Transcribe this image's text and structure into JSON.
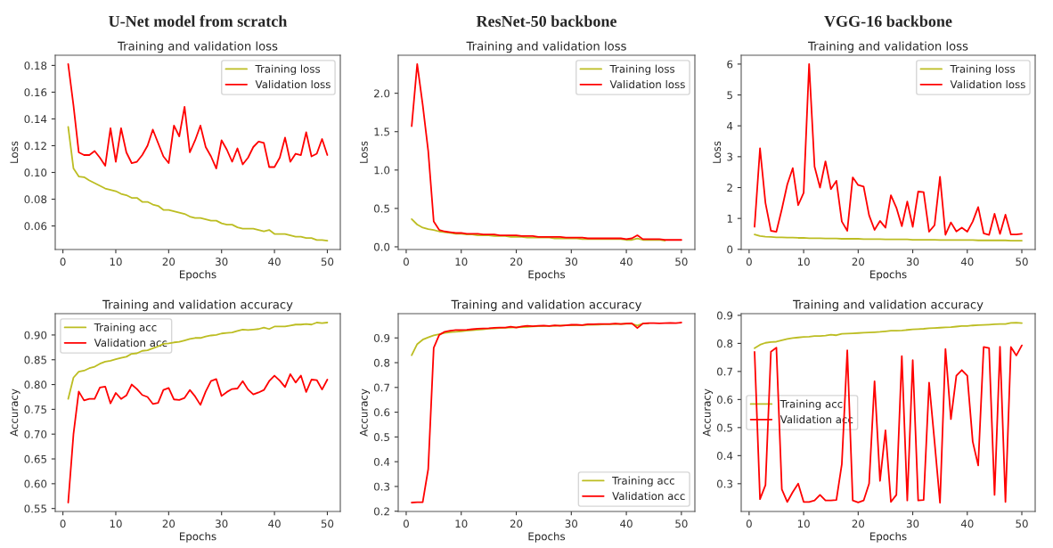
{
  "chart_data": [
    {
      "type": "line",
      "title": "U-Net model from scratch",
      "subtitle": "Training and validation loss",
      "xlabel": "Epochs",
      "ylabel": "Loss",
      "legend": "top right",
      "x": [
        1,
        2,
        3,
        4,
        5,
        6,
        7,
        8,
        9,
        10,
        11,
        12,
        13,
        14,
        15,
        16,
        17,
        18,
        19,
        20,
        21,
        22,
        23,
        24,
        25,
        26,
        27,
        28,
        29,
        30,
        31,
        32,
        33,
        34,
        35,
        36,
        37,
        38,
        39,
        40,
        41,
        42,
        43,
        44,
        45,
        46,
        47,
        48,
        49,
        50
      ],
      "xlim": [
        -1.45,
        52.45
      ],
      "xticks": [
        0,
        10,
        20,
        30,
        40,
        50
      ],
      "ylim": [
        0.0424,
        0.1876
      ],
      "yticks": [
        0.06,
        0.08,
        {
          "value": 0.1,
          "label": "0.10"
        },
        0.12,
        0.14,
        0.16,
        0.18
      ],
      "series": [
        {
          "name": "Training loss",
          "color": "#bcbd22",
          "values": [
            0.134,
            0.103,
            0.097,
            0.0965,
            0.094,
            0.092,
            0.09,
            0.088,
            0.087,
            0.086,
            0.084,
            0.083,
            0.081,
            0.081,
            0.078,
            0.078,
            0.076,
            0.075,
            0.072,
            0.072,
            0.071,
            0.07,
            0.069,
            0.067,
            0.066,
            0.066,
            0.065,
            0.064,
            0.064,
            0.062,
            0.061,
            0.061,
            0.059,
            0.058,
            0.058,
            0.058,
            0.057,
            0.056,
            0.057,
            0.054,
            0.054,
            0.054,
            0.053,
            0.052,
            0.052,
            0.051,
            0.051,
            0.0495,
            0.0495,
            0.049
          ]
        },
        {
          "name": "Validation loss",
          "color": "#ff0000",
          "values": [
            0.181,
            0.15,
            0.115,
            0.113,
            0.113,
            0.116,
            0.111,
            0.105,
            0.133,
            0.108,
            0.133,
            0.115,
            0.107,
            0.108,
            0.113,
            0.12,
            0.132,
            0.122,
            0.112,
            0.107,
            0.135,
            0.127,
            0.149,
            0.115,
            0.124,
            0.135,
            0.119,
            0.112,
            0.103,
            0.124,
            0.117,
            0.108,
            0.118,
            0.106,
            0.111,
            0.119,
            0.123,
            0.122,
            0.104,
            0.104,
            0.111,
            0.126,
            0.108,
            0.114,
            0.113,
            0.13,
            0.112,
            0.114,
            0.125,
            0.113
          ]
        }
      ]
    },
    {
      "type": "line",
      "title": "ResNet-50 backbone",
      "subtitle": "Training and validation loss",
      "xlabel": "Epochs",
      "ylabel": "Loss",
      "legend": "top right",
      "x": [
        1,
        2,
        3,
        4,
        5,
        6,
        7,
        8,
        9,
        10,
        11,
        12,
        13,
        14,
        15,
        16,
        17,
        18,
        19,
        20,
        21,
        22,
        23,
        24,
        25,
        26,
        27,
        28,
        29,
        30,
        31,
        32,
        33,
        34,
        35,
        36,
        37,
        38,
        39,
        40,
        41,
        42,
        43,
        44,
        45,
        46,
        47,
        48,
        49,
        50
      ],
      "xlim": [
        -1.45,
        52.45
      ],
      "xticks": [
        0,
        10,
        20,
        30,
        40,
        50
      ],
      "ylim": [
        -0.035,
        2.495
      ],
      "yticks": [
        {
          "value": 0,
          "label": "0.0"
        },
        0.5,
        {
          "value": 1,
          "label": "1.0"
        },
        1.5,
        {
          "value": 2,
          "label": "2.0"
        }
      ],
      "series": [
        {
          "name": "Training loss",
          "color": "#bcbd22",
          "values": [
            0.36,
            0.29,
            0.25,
            0.23,
            0.22,
            0.2,
            0.19,
            0.18,
            0.17,
            0.17,
            0.16,
            0.16,
            0.15,
            0.15,
            0.15,
            0.14,
            0.14,
            0.14,
            0.13,
            0.13,
            0.13,
            0.12,
            0.12,
            0.12,
            0.12,
            0.12,
            0.11,
            0.11,
            0.11,
            0.11,
            0.11,
            0.1,
            0.1,
            0.1,
            0.1,
            0.1,
            0.1,
            0.1,
            0.1,
            0.09,
            0.09,
            0.11,
            0.09,
            0.09,
            0.09,
            0.09,
            0.08,
            null,
            null,
            null
          ]
        },
        {
          "name": "Validation loss",
          "color": "#ff0000",
          "values": [
            1.57,
            2.38,
            1.85,
            1.25,
            0.33,
            0.22,
            0.2,
            0.19,
            0.18,
            0.18,
            0.17,
            0.17,
            0.17,
            0.16,
            0.16,
            0.16,
            0.15,
            0.15,
            0.15,
            0.15,
            0.14,
            0.14,
            0.14,
            0.13,
            0.13,
            0.13,
            0.13,
            0.13,
            0.12,
            0.12,
            0.12,
            0.12,
            0.11,
            0.11,
            0.11,
            0.11,
            0.11,
            0.11,
            0.11,
            0.1,
            0.11,
            0.15,
            0.1,
            0.1,
            0.1,
            0.1,
            0.09,
            0.09,
            0.09,
            0.09
          ]
        }
      ]
    },
    {
      "type": "line",
      "title": "VGG-16 backbone",
      "subtitle": "Training and validation loss",
      "xlabel": "Epochs",
      "ylabel": "Loss",
      "legend": "top right",
      "x": [
        1,
        2,
        3,
        4,
        5,
        6,
        7,
        8,
        9,
        10,
        11,
        12,
        13,
        14,
        15,
        16,
        17,
        18,
        19,
        20,
        21,
        22,
        23,
        24,
        25,
        26,
        27,
        28,
        29,
        30,
        31,
        32,
        33,
        34,
        35,
        36,
        37,
        38,
        39,
        40,
        41,
        42,
        43,
        44,
        45,
        46,
        47,
        48,
        49,
        50
      ],
      "xlim": [
        -1.45,
        52.45
      ],
      "xticks": [
        0,
        10,
        20,
        30,
        40,
        50
      ],
      "ylim": [
        -0.006,
        6.286
      ],
      "yticks": [
        0,
        1,
        2,
        3,
        4,
        5,
        6
      ],
      "series": [
        {
          "name": "Training loss",
          "color": "#bcbd22",
          "values": [
            0.48,
            0.43,
            0.41,
            0.4,
            0.39,
            0.39,
            0.38,
            0.38,
            0.37,
            0.37,
            0.36,
            0.36,
            0.36,
            0.35,
            0.35,
            0.35,
            0.34,
            0.34,
            0.34,
            0.34,
            0.33,
            0.33,
            0.33,
            0.33,
            0.32,
            0.32,
            0.32,
            0.32,
            0.32,
            0.31,
            0.31,
            0.31,
            0.31,
            0.31,
            0.3,
            0.3,
            0.3,
            0.3,
            0.3,
            0.3,
            0.3,
            0.29,
            0.29,
            0.29,
            0.29,
            0.29,
            0.29,
            0.28,
            0.28,
            0.28
          ]
        },
        {
          "name": "Validation loss",
          "color": "#ff0000",
          "values": [
            0.73,
            3.27,
            1.5,
            0.6,
            0.57,
            1.3,
            2.1,
            2.63,
            1.43,
            1.83,
            6.0,
            2.68,
            2.0,
            2.85,
            1.95,
            2.22,
            0.9,
            0.6,
            2.33,
            2.08,
            2.03,
            1.1,
            0.63,
            0.92,
            0.7,
            1.75,
            1.35,
            0.75,
            1.55,
            0.73,
            1.87,
            1.85,
            0.57,
            0.78,
            2.35,
            0.47,
            0.87,
            0.58,
            0.7,
            0.57,
            0.9,
            1.37,
            0.52,
            0.47,
            1.15,
            0.5,
            1.12,
            0.48,
            0.48,
            0.5
          ]
        }
      ]
    },
    {
      "type": "line",
      "title": "Training and validation accuracy",
      "xlabel": "Epochs",
      "ylabel": "Accuracy",
      "legend": "top left",
      "x": [
        1,
        2,
        3,
        4,
        5,
        6,
        7,
        8,
        9,
        10,
        11,
        12,
        13,
        14,
        15,
        16,
        17,
        18,
        19,
        20,
        21,
        22,
        23,
        24,
        25,
        26,
        27,
        28,
        29,
        30,
        31,
        32,
        33,
        34,
        35,
        36,
        37,
        38,
        39,
        40,
        41,
        42,
        43,
        44,
        45,
        46,
        47,
        48,
        49,
        50
      ],
      "xlim": [
        -1.45,
        52.45
      ],
      "xticks": [
        0,
        10,
        20,
        30,
        40,
        50
      ],
      "ylim": [
        0.544,
        0.943
      ],
      "yticks": [
        0.55,
        {
          "value": 0.6,
          "label": "0.60"
        },
        0.65,
        {
          "value": 0.7,
          "label": "0.70"
        },
        0.75,
        {
          "value": 0.8,
          "label": "0.80"
        },
        0.85,
        {
          "value": 0.9,
          "label": "0.90"
        }
      ],
      "series": [
        {
          "name": "Training acc",
          "color": "#bcbd22",
          "values": [
            0.771,
            0.814,
            0.826,
            0.828,
            0.833,
            0.836,
            0.842,
            0.846,
            0.848,
            0.851,
            0.854,
            0.856,
            0.862,
            0.863,
            0.868,
            0.869,
            0.873,
            0.877,
            0.882,
            0.883,
            0.885,
            0.886,
            0.889,
            0.892,
            0.894,
            0.894,
            0.897,
            0.899,
            0.9,
            0.903,
            0.904,
            0.905,
            0.908,
            0.911,
            0.91,
            0.911,
            0.912,
            0.915,
            0.912,
            0.917,
            0.917,
            0.917,
            0.919,
            0.921,
            0.921,
            0.922,
            0.921,
            0.925,
            0.924,
            0.925
          ]
        },
        {
          "name": "Validation acc",
          "color": "#ff0000",
          "values": [
            0.562,
            0.7,
            0.786,
            0.768,
            0.771,
            0.771,
            0.794,
            0.796,
            0.762,
            0.783,
            0.771,
            0.778,
            0.8,
            0.791,
            0.779,
            0.775,
            0.761,
            0.763,
            0.789,
            0.793,
            0.77,
            0.769,
            0.773,
            0.789,
            0.776,
            0.759,
            0.786,
            0.807,
            0.811,
            0.777,
            0.785,
            0.791,
            0.792,
            0.807,
            0.79,
            0.78,
            0.784,
            0.789,
            0.807,
            0.818,
            0.808,
            0.795,
            0.821,
            0.804,
            0.818,
            0.785,
            0.81,
            0.809,
            0.79,
            0.81
          ]
        }
      ]
    },
    {
      "type": "line",
      "title": "Training and validation accuracy",
      "xlabel": "Epochs",
      "ylabel": "Accuracy",
      "legend": "bottom right",
      "x": [
        1,
        2,
        3,
        4,
        5,
        6,
        7,
        8,
        9,
        10,
        11,
        12,
        13,
        14,
        15,
        16,
        17,
        18,
        19,
        20,
        21,
        22,
        23,
        24,
        25,
        26,
        27,
        28,
        29,
        30,
        31,
        32,
        33,
        34,
        35,
        36,
        37,
        38,
        39,
        40,
        41,
        42,
        43,
        44,
        45,
        46,
        47,
        48,
        49,
        50
      ],
      "xlim": [
        -1.45,
        52.45
      ],
      "xticks": [
        0,
        10,
        20,
        30,
        40,
        50
      ],
      "ylim": [
        0.199,
        0.998
      ],
      "yticks": [
        0.2,
        0.3,
        0.4,
        0.5,
        0.6,
        0.7,
        0.8,
        0.9
      ],
      "series": [
        {
          "name": "Training acc",
          "color": "#bcbd22",
          "values": [
            0.83,
            0.875,
            0.893,
            0.902,
            0.91,
            0.915,
            0.92,
            0.923,
            0.925,
            0.927,
            0.929,
            0.931,
            0.933,
            0.935,
            0.937,
            0.938,
            0.94,
            0.941,
            0.942,
            0.943,
            0.944,
            0.945,
            0.946,
            0.947,
            0.948,
            0.948,
            0.949,
            0.95,
            0.951,
            0.951,
            0.952,
            0.952,
            0.953,
            null,
            0.954,
            0.955,
            0.955,
            0.956,
            0.956,
            0.957,
            0.957,
            0.95,
            0.958,
            0.958,
            null,
            null,
            null,
            null,
            null,
            null
          ]
        },
        {
          "name": "Validation acc",
          "color": "#ff0000",
          "values": [
            0.235,
            0.236,
            0.236,
            0.37,
            0.86,
            0.912,
            0.925,
            0.929,
            0.932,
            0.932,
            0.933,
            0.935,
            0.937,
            0.938,
            0.939,
            0.941,
            0.942,
            0.942,
            0.945,
            0.942,
            0.946,
            0.949,
            0.947,
            0.949,
            0.95,
            0.948,
            0.951,
            0.949,
            0.951,
            0.953,
            0.953,
            0.952,
            0.955,
            0.955,
            0.956,
            0.956,
            0.956,
            0.958,
            0.956,
            0.958,
            0.959,
            0.94,
            0.958,
            0.96,
            0.96,
            0.959,
            0.96,
            0.961,
            0.96,
            0.962
          ]
        }
      ]
    },
    {
      "type": "line",
      "title": "Training and validation accuracy",
      "xlabel": "Epochs",
      "ylabel": "Accuracy",
      "legend": "center left",
      "x": [
        1,
        2,
        3,
        4,
        5,
        6,
        7,
        8,
        9,
        10,
        11,
        12,
        13,
        14,
        15,
        16,
        17,
        18,
        19,
        20,
        21,
        22,
        23,
        24,
        25,
        26,
        27,
        28,
        29,
        30,
        31,
        32,
        33,
        34,
        35,
        36,
        37,
        38,
        39,
        40,
        41,
        42,
        43,
        44,
        45,
        46,
        47,
        48,
        49,
        50
      ],
      "xlim": [
        -1.45,
        52.45
      ],
      "xticks": [
        0,
        10,
        20,
        30,
        40,
        50
      ],
      "ylim": [
        0.201,
        0.906
      ],
      "yticks": [
        0.3,
        0.4,
        0.5,
        0.6,
        0.7,
        0.8,
        0.9
      ],
      "series": [
        {
          "name": "Training acc",
          "color": "#bcbd22",
          "values": [
            0.783,
            0.795,
            0.802,
            0.805,
            0.806,
            0.811,
            0.816,
            0.819,
            0.821,
            0.823,
            0.824,
            0.826,
            0.826,
            0.828,
            0.831,
            0.829,
            0.834,
            0.835,
            0.836,
            0.837,
            0.838,
            0.839,
            0.84,
            0.841,
            0.843,
            0.845,
            0.845,
            0.846,
            0.848,
            0.85,
            0.851,
            0.852,
            0.854,
            0.855,
            0.856,
            0.857,
            0.858,
            0.86,
            0.862,
            0.862,
            0.864,
            0.865,
            0.866,
            0.867,
            0.868,
            0.869,
            0.869,
            0.873,
            0.874,
            0.872
          ]
        },
        {
          "name": "Validation acc",
          "color": "#ff0000",
          "values": [
            0.77,
            0.245,
            0.295,
            0.77,
            0.785,
            0.28,
            0.235,
            0.27,
            0.3,
            0.235,
            0.235,
            0.24,
            0.26,
            0.24,
            0.24,
            0.242,
            0.37,
            0.775,
            0.24,
            0.233,
            0.24,
            0.3,
            0.665,
            0.31,
            0.49,
            0.235,
            0.26,
            0.755,
            0.24,
            0.74,
            0.24,
            0.242,
            0.66,
            0.45,
            0.232,
            0.78,
            0.53,
            0.685,
            0.705,
            0.685,
            0.45,
            0.365,
            0.787,
            0.783,
            0.26,
            0.788,
            0.235,
            0.787,
            0.757,
            0.793
          ]
        }
      ]
    }
  ]
}
